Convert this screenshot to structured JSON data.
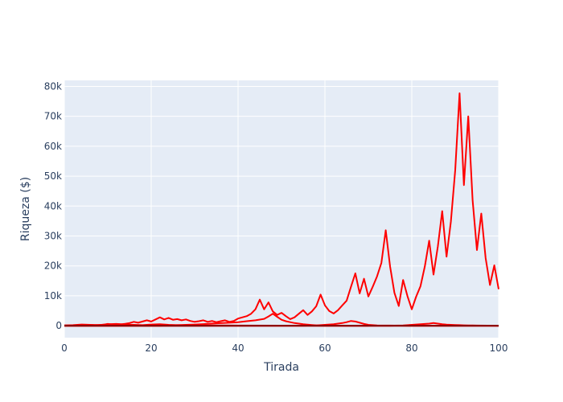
{
  "chart_data": {
    "type": "line",
    "xlabel": "Tirada",
    "ylabel": "Riqueza ($)",
    "xlim": [
      0,
      100
    ],
    "ylim": [
      -4000,
      82000
    ],
    "grid": true,
    "legend": "none",
    "x_ticks": [
      {
        "value": 0,
        "label": "0"
      },
      {
        "value": 20,
        "label": "20"
      },
      {
        "value": 40,
        "label": "40"
      },
      {
        "value": 60,
        "label": "60"
      },
      {
        "value": 80,
        "label": "80"
      },
      {
        "value": 100,
        "label": "100"
      }
    ],
    "y_ticks": [
      {
        "value": 0,
        "label": "0"
      },
      {
        "value": 10000,
        "label": "10k"
      },
      {
        "value": 20000,
        "label": "20k"
      },
      {
        "value": 30000,
        "label": "30k"
      },
      {
        "value": 40000,
        "label": "40k"
      },
      {
        "value": 50000,
        "label": "50k"
      },
      {
        "value": 60000,
        "label": "60k"
      },
      {
        "value": 70000,
        "label": "70k"
      },
      {
        "value": 80000,
        "label": "80k"
      }
    ],
    "colors": {
      "plot_bg": "#e5ecf6",
      "grid": "#ffffff",
      "series_main": "#ff0000",
      "series_flat": "#8b0000"
    },
    "series": [
      {
        "color": "#ff0000",
        "x": [
          0,
          3,
          5,
          7,
          9,
          10,
          11,
          12,
          13,
          14,
          15,
          16,
          17,
          18,
          19,
          20,
          21,
          22,
          23,
          24,
          25,
          26,
          27,
          28,
          29,
          30,
          31,
          32,
          33,
          34,
          35,
          36,
          37,
          38,
          39,
          40,
          41,
          42,
          43,
          44,
          45,
          46,
          47,
          48,
          49,
          50,
          51,
          52,
          53,
          54,
          55,
          56,
          57,
          58,
          59,
          60,
          61,
          62,
          63,
          64,
          65,
          66,
          67,
          68,
          69,
          70,
          71,
          72,
          73,
          74,
          75,
          76,
          77,
          78,
          79,
          80,
          81,
          82,
          83,
          84,
          85,
          86,
          87,
          88,
          89,
          90,
          91,
          92,
          93,
          94,
          95,
          96,
          97,
          98,
          99,
          100
        ],
        "y": [
          100,
          150,
          300,
          200,
          350,
          600,
          400,
          550,
          450,
          650,
          900,
          1300,
          1000,
          1400,
          1800,
          1400,
          2100,
          2800,
          2100,
          2600,
          2000,
          2200,
          1800,
          2100,
          1600,
          1300,
          1500,
          1800,
          1300,
          1600,
          1200,
          1500,
          1800,
          1300,
          1600,
          2400,
          2800,
          3200,
          4000,
          5500,
          8700,
          5500,
          7800,
          4800,
          3600,
          4300,
          3200,
          2200,
          2800,
          4000,
          5200,
          3600,
          4800,
          6500,
          10400,
          6800,
          4900,
          4100,
          5200,
          6800,
          8400,
          13000,
          17500,
          10800,
          15700,
          9800,
          13000,
          16500,
          21000,
          31900,
          19800,
          11000,
          6600,
          15300,
          9900,
          5500,
          9700,
          13200,
          19800,
          28400,
          17100,
          26500,
          38300,
          23100,
          34800,
          52000,
          77700,
          47000,
          70000,
          42000,
          25300,
          37500,
          22600,
          13600,
          20200,
          12200
        ]
      },
      {
        "color": "#ff0000",
        "x": [
          0,
          5,
          10,
          15,
          20,
          22,
          24,
          25,
          26,
          28,
          30,
          32,
          35,
          38,
          40,
          42,
          44,
          46,
          47,
          48,
          49,
          50,
          51,
          52,
          53,
          54,
          55,
          56,
          57,
          58,
          59,
          60,
          62,
          65,
          70
        ],
        "y": [
          0,
          0,
          0,
          0,
          0,
          0,
          50,
          100,
          200,
          300,
          400,
          550,
          800,
          1000,
          1200,
          1500,
          1800,
          2300,
          3100,
          4000,
          3000,
          2000,
          1500,
          1200,
          900,
          700,
          500,
          350,
          250,
          150,
          80,
          40,
          20,
          0,
          0
        ]
      },
      {
        "color": "#ff0000",
        "x": [
          0,
          10,
          20,
          30,
          40,
          45,
          50,
          55,
          58,
          60,
          62,
          63,
          64,
          65,
          66,
          67,
          68,
          69,
          70,
          72,
          75,
          80,
          85,
          90,
          95,
          100
        ],
        "y": [
          0,
          0,
          0,
          0,
          0,
          0,
          0,
          0,
          100,
          300,
          500,
          700,
          900,
          1200,
          1600,
          1400,
          1000,
          600,
          300,
          100,
          50,
          0,
          0,
          0,
          0,
          0
        ]
      },
      {
        "color": "#ff0000",
        "x": [
          0,
          10,
          20,
          30,
          40,
          50,
          60,
          70,
          75,
          78,
          80,
          82,
          84,
          85,
          86,
          87,
          88,
          89,
          90,
          91,
          92,
          93,
          94,
          95,
          100
        ],
        "y": [
          0,
          0,
          0,
          0,
          0,
          0,
          0,
          0,
          0,
          100,
          300,
          500,
          700,
          900,
          700,
          500,
          350,
          300,
          250,
          200,
          150,
          100,
          80,
          50,
          0
        ]
      },
      {
        "color": "#ff0000",
        "x": [
          0,
          2,
          4,
          6,
          8,
          10,
          12,
          14,
          16,
          18,
          20,
          22,
          24,
          26,
          28,
          30,
          35,
          40,
          50,
          60,
          70,
          80,
          90,
          100
        ],
        "y": [
          100,
          200,
          400,
          300,
          200,
          500,
          600,
          400,
          300,
          200,
          400,
          500,
          300,
          200,
          150,
          100,
          80,
          50,
          20,
          0,
          0,
          0,
          0,
          0
        ]
      },
      {
        "color": "#8b0000",
        "x": [
          0,
          20,
          40,
          60,
          80,
          90,
          95,
          100
        ],
        "y": [
          0,
          0,
          0,
          0,
          0,
          0,
          0,
          0
        ]
      },
      {
        "color": "#8b0000",
        "x": [
          0,
          20,
          40,
          60,
          80,
          100
        ],
        "y": [
          0,
          0,
          0,
          0,
          0,
          0
        ]
      }
    ]
  }
}
